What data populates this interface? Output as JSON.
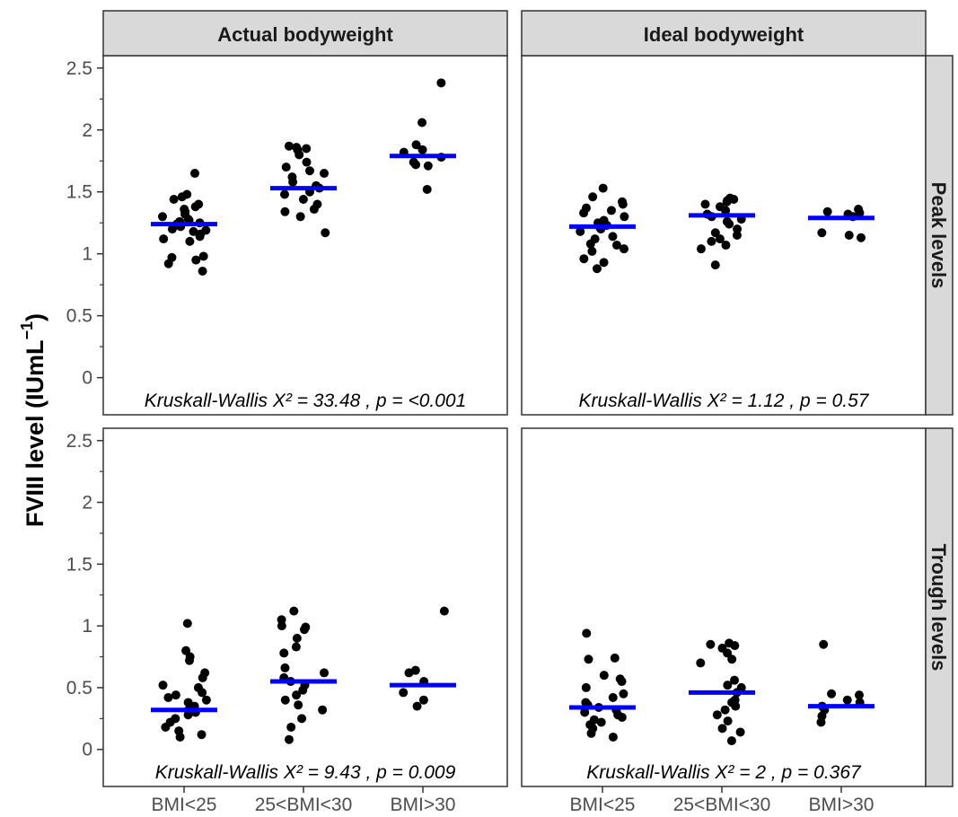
{
  "chart_data": {
    "type": "scatter",
    "ylabel": "FVIII level (IUmL",
    "ylabel_sup": "−1",
    "ylabel_close": ")",
    "columns": [
      "Actual bodyweight",
      "Ideal bodyweight"
    ],
    "rows": [
      "Peak levels",
      "Trough levels"
    ],
    "categories": [
      "BMI<25",
      "25<BMI<30",
      "BMI>30"
    ],
    "yticks": [
      "0",
      "0.5",
      "1",
      "1.5",
      "2",
      "2.5"
    ],
    "ylim": [
      -0.3,
      2.6
    ],
    "point_color": "#000000",
    "median_color": "#0000ff",
    "panels": [
      {
        "row": "Peak levels",
        "col": "Actual bodyweight",
        "annotation": "Kruskall-Wallis X² = 33.48 , p = <0.001",
        "groups": [
          {
            "category": "BMI<25",
            "median": 1.24,
            "values": [
              1.65,
              1.48,
              1.46,
              1.44,
              1.4,
              1.38,
              1.36,
              1.34,
              1.32,
              1.3,
              1.28,
              1.27,
              1.26,
              1.25,
              1.24,
              1.22,
              1.2,
              1.19,
              1.18,
              1.16,
              1.14,
              1.12,
              1.1,
              0.98,
              0.97,
              0.95,
              0.92,
              0.86
            ]
          },
          {
            "category": "25<BMI<30",
            "median": 1.53,
            "values": [
              1.87,
              1.86,
              1.85,
              1.84,
              1.8,
              1.74,
              1.7,
              1.67,
              1.65,
              1.62,
              1.58,
              1.55,
              1.53,
              1.5,
              1.48,
              1.44,
              1.4,
              1.36,
              1.34,
              1.3,
              1.17
            ]
          },
          {
            "category": "BMI>30",
            "median": 1.79,
            "values": [
              2.38,
              2.06,
              1.88,
              1.84,
              1.82,
              1.78,
              1.74,
              1.72,
              1.71,
              1.52
            ]
          }
        ]
      },
      {
        "row": "Peak levels",
        "col": "Ideal bodyweight",
        "annotation": "Kruskall-Wallis X² = 1.12 , p = 0.57",
        "groups": [
          {
            "category": "BMI<25",
            "median": 1.22,
            "values": [
              1.53,
              1.46,
              1.42,
              1.4,
              1.37,
              1.35,
              1.33,
              1.3,
              1.27,
              1.25,
              1.23,
              1.21,
              1.2,
              1.18,
              1.14,
              1.12,
              1.08,
              1.07,
              1.04,
              1.02,
              0.96,
              0.93,
              0.88
            ]
          },
          {
            "category": "25<BMI<30",
            "median": 1.31,
            "values": [
              1.45,
              1.44,
              1.43,
              1.42,
              1.4,
              1.38,
              1.35,
              1.32,
              1.3,
              1.28,
              1.26,
              1.24,
              1.2,
              1.17,
              1.15,
              1.12,
              1.1,
              1.07,
              1.04,
              0.91
            ]
          },
          {
            "category": "BMI>30",
            "median": 1.29,
            "values": [
              1.36,
              1.34,
              1.33,
              1.32,
              1.3,
              1.17,
              1.15,
              1.13
            ]
          }
        ]
      },
      {
        "row": "Trough levels",
        "col": "Actual bodyweight",
        "annotation": "Kruskall-Wallis X² = 9.43 , p = 0.009",
        "groups": [
          {
            "category": "BMI<25",
            "median": 0.32,
            "values": [
              1.02,
              0.8,
              0.75,
              0.72,
              0.62,
              0.58,
              0.52,
              0.5,
              0.46,
              0.44,
              0.42,
              0.4,
              0.38,
              0.35,
              0.32,
              0.3,
              0.28,
              0.25,
              0.22,
              0.18,
              0.15,
              0.12,
              0.1
            ]
          },
          {
            "category": "25<BMI<30",
            "median": 0.55,
            "values": [
              1.12,
              1.05,
              1.0,
              0.99,
              0.97,
              0.9,
              0.83,
              0.78,
              0.66,
              0.62,
              0.58,
              0.55,
              0.52,
              0.48,
              0.44,
              0.4,
              0.36,
              0.32,
              0.25,
              0.18,
              0.08
            ]
          },
          {
            "category": "BMI>30",
            "median": 0.52,
            "values": [
              1.12,
              0.64,
              0.62,
              0.55,
              0.46,
              0.4,
              0.35
            ]
          }
        ]
      },
      {
        "row": "Trough levels",
        "col": "Ideal bodyweight",
        "annotation": "Kruskall-Wallis X² = 2 , p = 0.367",
        "groups": [
          {
            "category": "BMI<25",
            "median": 0.34,
            "values": [
              0.94,
              0.74,
              0.73,
              0.6,
              0.57,
              0.55,
              0.5,
              0.45,
              0.42,
              0.38,
              0.36,
              0.34,
              0.32,
              0.3,
              0.28,
              0.26,
              0.24,
              0.22,
              0.2,
              0.17,
              0.13,
              0.1
            ]
          },
          {
            "category": "25<BMI<30",
            "median": 0.46,
            "values": [
              0.86,
              0.85,
              0.84,
              0.82,
              0.78,
              0.73,
              0.7,
              0.56,
              0.52,
              0.5,
              0.46,
              0.4,
              0.38,
              0.35,
              0.32,
              0.28,
              0.23,
              0.17,
              0.14,
              0.07
            ]
          },
          {
            "category": "BMI>30",
            "median": 0.35,
            "values": [
              0.85,
              0.45,
              0.44,
              0.4,
              0.38,
              0.35,
              0.32,
              0.27,
              0.22
            ]
          }
        ]
      }
    ]
  }
}
